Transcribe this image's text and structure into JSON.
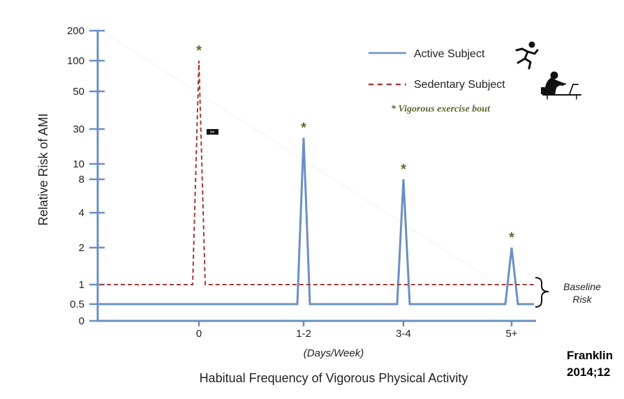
{
  "chart_data": {
    "type": "line",
    "ylabel": "Relative Risk of AMI",
    "xlabel": "Habitual Frequency of Vigorous Physical Activity",
    "x_units": "(Days/Week)",
    "categories": [
      "0",
      "1-2",
      "3-4",
      "5+"
    ],
    "y_ticks": [
      "200",
      "100",
      "50",
      "30",
      "10",
      "8",
      "4",
      "2",
      "1",
      "0.5",
      "0"
    ],
    "y_tick_values": [
      200,
      100,
      50,
      30,
      10,
      8,
      4,
      2,
      1,
      0.5,
      0
    ],
    "series": [
      {
        "name": "Active Subject",
        "style": "solid",
        "color": "#6b8fc4",
        "baseline": 0.5,
        "peaks": [
          {
            "x": "1-2",
            "y": 25
          },
          {
            "x": "3-4",
            "y": 8
          },
          {
            "x": "5+",
            "y": 2
          }
        ]
      },
      {
        "name": "Sedentary Subject",
        "style": "dashed",
        "color": "#a33a3a",
        "baseline": 1,
        "peaks": [
          {
            "x": "0",
            "y": 100
          }
        ]
      }
    ],
    "note": "* Vigorous exercise bout",
    "note_color": "#5d6b2e",
    "star_symbol": "*",
    "bracket_label_line1": "Baseline",
    "bracket_label_line2": "Risk",
    "marker_symbol": "✂",
    "legend_icons": [
      "runner-icon",
      "desk-worker-icon"
    ]
  },
  "citation": {
    "line1": "Franklin",
    "line2": "2014;12"
  }
}
